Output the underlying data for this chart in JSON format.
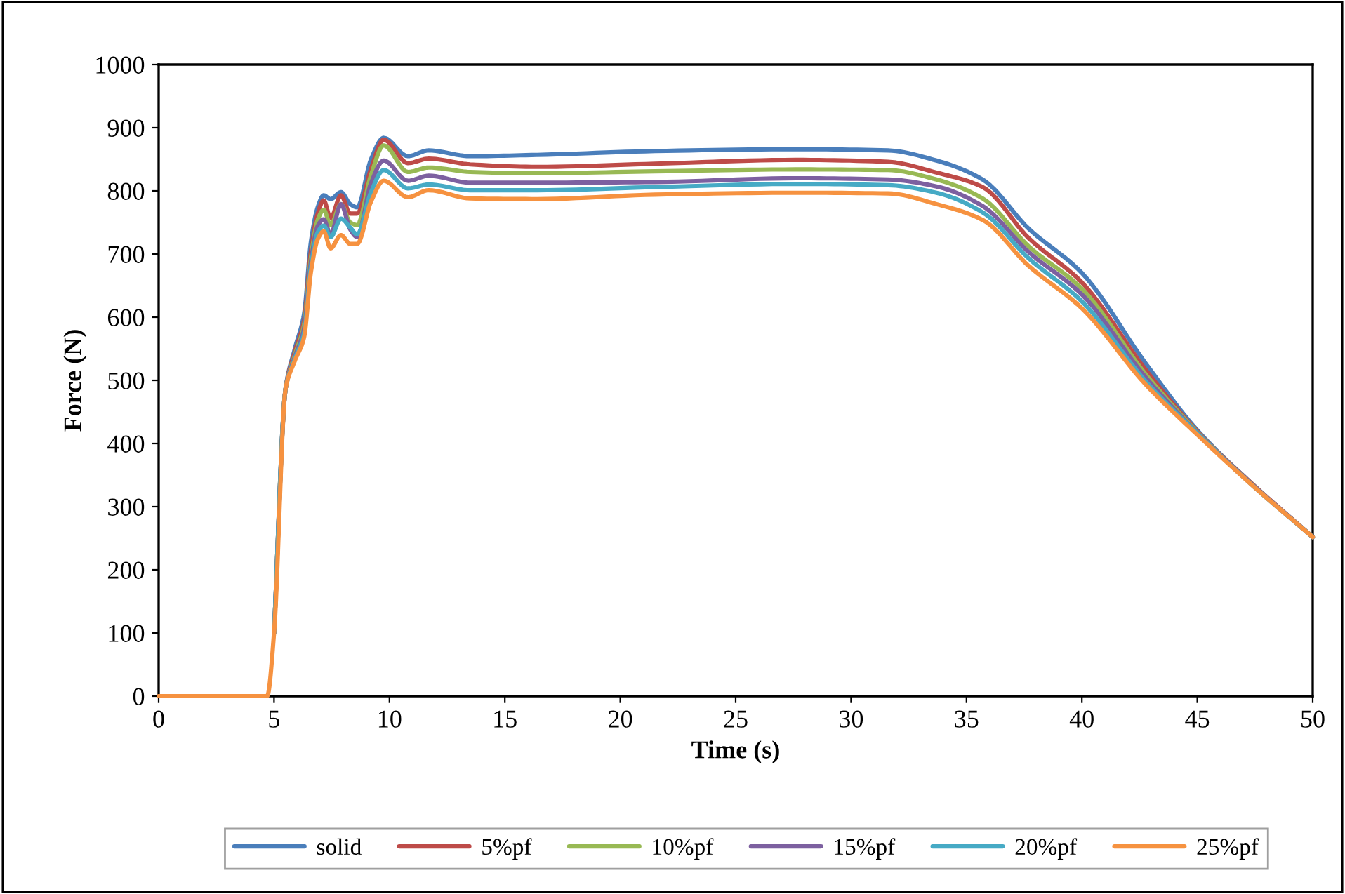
{
  "chart_data": {
    "type": "line",
    "xlabel": "Time (s)",
    "ylabel": "Force (N)",
    "x": [
      0,
      4.7,
      5.0,
      5.5,
      5.9,
      6.3,
      6.6,
      6.9,
      7.15,
      7.45,
      7.9,
      8.3,
      8.6,
      9.2,
      9.75,
      10.8,
      11.7,
      13.5,
      16.4,
      21.5,
      27.6,
      31.6,
      33.7,
      35.7,
      37.7,
      40,
      42.8,
      45,
      47.5,
      50
    ],
    "series": [
      {
        "name": "solid",
        "color": "#4a7ebb",
        "values": [
          null,
          null,
          100,
          487,
          550,
          605,
          720,
          775,
          793,
          787,
          798,
          779,
          774,
          850,
          884,
          855,
          864,
          855,
          857,
          863,
          866,
          864,
          848,
          818,
          740,
          670,
          525,
          421,
          332,
          252
        ]
      },
      {
        "name": "5%pf",
        "color": "#be4b48",
        "values": [
          null,
          null,
          100,
          487,
          545,
          595,
          705,
          765,
          785,
          757,
          793,
          764,
          764,
          835,
          881,
          844,
          851,
          842,
          838,
          843,
          849,
          846,
          829,
          806,
          725,
          655,
          515,
          419,
          332,
          252
        ]
      },
      {
        "name": "10%pf",
        "color": "#98b954",
        "values": [
          null,
          null,
          100,
          487,
          540,
          588,
          695,
          755,
          770,
          746,
          779,
          750,
          746,
          825,
          872,
          830,
          837,
          830,
          828,
          831,
          834,
          833,
          818,
          788,
          712,
          645,
          508,
          418,
          331,
          252
        ]
      },
      {
        "name": "15%pf",
        "color": "#7d60a0",
        "values": [
          null,
          null,
          100,
          487,
          537,
          582,
          688,
          745,
          755,
          731,
          779,
          739,
          727,
          812,
          848,
          816,
          824,
          813,
          813,
          814,
          820,
          818,
          807,
          776,
          703,
          636,
          503,
          417,
          331,
          252
        ]
      },
      {
        "name": "20%pf",
        "color": "#46aac5",
        "values": [
          null,
          null,
          100,
          487,
          534,
          575,
          680,
          735,
          745,
          727,
          756,
          742,
          731,
          798,
          833,
          804,
          810,
          801,
          801,
          806,
          811,
          809,
          797,
          766,
          693,
          625,
          497,
          416,
          330,
          252
        ]
      },
      {
        "name": "25%pf",
        "color": "#f69240",
        "values": [
          0,
          0,
          100,
          487,
          531,
          568,
          672,
          724,
          736,
          709,
          730,
          716,
          716,
          783,
          816,
          790,
          801,
          788,
          787,
          794,
          797,
          796,
          779,
          754,
          681,
          614,
          492,
          414,
          330,
          252
        ]
      }
    ],
    "xlim": [
      0,
      50
    ],
    "xticks": [
      0,
      5,
      10,
      15,
      20,
      25,
      30,
      35,
      40,
      45,
      50
    ],
    "ylim": [
      0,
      1000
    ],
    "yticks": [
      0,
      100,
      200,
      300,
      400,
      500,
      600,
      700,
      800,
      900,
      1000
    ],
    "grid": false,
    "legend": "bottom",
    "marker": "none",
    "line_style": "solid"
  }
}
